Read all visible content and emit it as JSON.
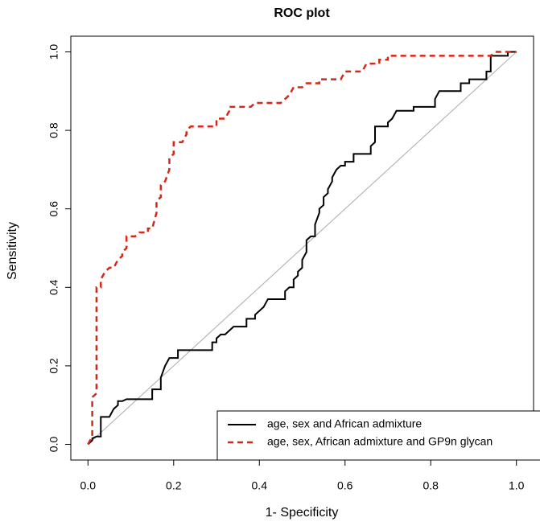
{
  "chart_data": {
    "type": "line",
    "title": "ROC plot",
    "x_label": "1- Specificity",
    "y_label": "Sensitivity",
    "xlim": [
      -0.04,
      1.04
    ],
    "ylim": [
      -0.04,
      1.04
    ],
    "xticks": [
      {
        "value": 0,
        "label": "0.0"
      },
      {
        "value": 0.2,
        "label": "0.2"
      },
      {
        "value": 0.4,
        "label": "0.4"
      },
      {
        "value": 0.6,
        "label": "0.6"
      },
      {
        "value": 0.8,
        "label": "0.8"
      },
      {
        "value": 1,
        "label": "1.0"
      }
    ],
    "yticks": [
      {
        "value": 0,
        "label": "0.0"
      },
      {
        "value": 0.2,
        "label": "0.2"
      },
      {
        "value": 0.4,
        "label": "0.4"
      },
      {
        "value": 0.6,
        "label": "0.6"
      },
      {
        "value": 0.8,
        "label": "0.8"
      },
      {
        "value": 1,
        "label": "1.0"
      }
    ],
    "legend": "bottom-right",
    "series": [
      {
        "name": "age, sex and African admixture",
        "color": "#000000",
        "dash": false,
        "x": [
          0,
          0.01,
          0.01,
          0.02,
          0.03,
          0.03,
          0.05,
          0.06,
          0.07,
          0.07,
          0.08,
          0.09,
          0.15,
          0.15,
          0.17,
          0.17,
          0.18,
          0.19,
          0.21,
          0.21,
          0.29,
          0.29,
          0.3,
          0.3,
          0.31,
          0.32,
          0.33,
          0.34,
          0.37,
          0.37,
          0.39,
          0.39,
          0.4,
          0.41,
          0.42,
          0.46,
          0.46,
          0.47,
          0.48,
          0.48,
          0.49,
          0.49,
          0.5,
          0.5,
          0.51,
          0.51,
          0.52,
          0.53,
          0.53,
          0.54,
          0.54,
          0.55,
          0.55,
          0.56,
          0.56,
          0.57,
          0.57,
          0.58,
          0.59,
          0.6,
          0.6,
          0.62,
          0.62,
          0.66,
          0.66,
          0.67,
          0.67,
          0.7,
          0.7,
          0.71,
          0.72,
          0.76,
          0.76,
          0.81,
          0.81,
          0.82,
          0.87,
          0.87,
          0.89,
          0.89,
          0.93,
          0.93,
          0.94,
          0.94,
          0.98,
          0.98,
          1
        ],
        "values": [
          0,
          0.01,
          0.015,
          0.02,
          0.02,
          0.07,
          0.07,
          0.09,
          0.1,
          0.11,
          0.11,
          0.115,
          0.115,
          0.14,
          0.14,
          0.17,
          0.2,
          0.22,
          0.22,
          0.24,
          0.24,
          0.26,
          0.26,
          0.27,
          0.28,
          0.28,
          0.29,
          0.3,
          0.3,
          0.32,
          0.32,
          0.33,
          0.34,
          0.35,
          0.37,
          0.37,
          0.39,
          0.4,
          0.4,
          0.42,
          0.43,
          0.44,
          0.45,
          0.47,
          0.49,
          0.52,
          0.53,
          0.53,
          0.56,
          0.59,
          0.6,
          0.61,
          0.63,
          0.64,
          0.65,
          0.67,
          0.68,
          0.7,
          0.71,
          0.71,
          0.72,
          0.72,
          0.74,
          0.74,
          0.76,
          0.77,
          0.81,
          0.81,
          0.82,
          0.83,
          0.85,
          0.85,
          0.86,
          0.86,
          0.88,
          0.9,
          0.9,
          0.92,
          0.92,
          0.93,
          0.93,
          0.95,
          0.95,
          0.99,
          0.99,
          1,
          1
        ]
      },
      {
        "name": "age, sex, African admixture and GP9n glycan",
        "color": "#d62718",
        "dash": true,
        "x": [
          0,
          0.01,
          0.01,
          0.02,
          0.02,
          0.03,
          0.03,
          0.04,
          0.05,
          0.06,
          0.07,
          0.08,
          0.08,
          0.09,
          0.09,
          0.11,
          0.12,
          0.14,
          0.14,
          0.15,
          0.16,
          0.16,
          0.17,
          0.17,
          0.18,
          0.19,
          0.19,
          0.2,
          0.2,
          0.22,
          0.23,
          0.23,
          0.24,
          0.3,
          0.3,
          0.32,
          0.33,
          0.33,
          0.38,
          0.39,
          0.45,
          0.47,
          0.48,
          0.5,
          0.51,
          0.54,
          0.54,
          0.59,
          0.6,
          0.64,
          0.65,
          0.68,
          0.68,
          0.7,
          0.7,
          0.94,
          0.95,
          1
        ],
        "values": [
          0,
          0.02,
          0.12,
          0.13,
          0.4,
          0.4,
          0.42,
          0.44,
          0.45,
          0.45,
          0.47,
          0.48,
          0.49,
          0.5,
          0.53,
          0.53,
          0.54,
          0.54,
          0.55,
          0.55,
          0.59,
          0.62,
          0.63,
          0.66,
          0.67,
          0.7,
          0.73,
          0.74,
          0.77,
          0.77,
          0.79,
          0.8,
          0.81,
          0.81,
          0.83,
          0.83,
          0.85,
          0.86,
          0.86,
          0.87,
          0.87,
          0.89,
          0.91,
          0.91,
          0.92,
          0.92,
          0.93,
          0.93,
          0.95,
          0.95,
          0.97,
          0.97,
          0.98,
          0.98,
          0.99,
          0.99,
          1,
          1
        ]
      }
    ]
  }
}
